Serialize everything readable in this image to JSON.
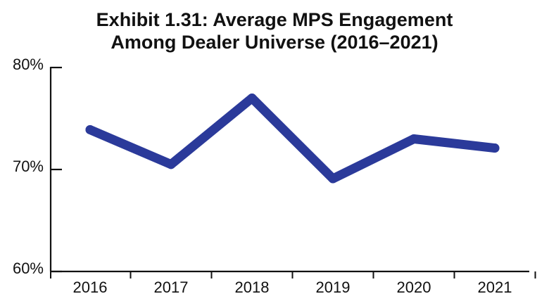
{
  "chart_data": {
    "type": "line",
    "title_lines": [
      "Exhibit 1.31: Average MPS Engagement",
      "Among Dealer Universe (2016–2021)"
    ],
    "categories": [
      "2016",
      "2017",
      "2018",
      "2019",
      "2020",
      "2021"
    ],
    "series": [
      {
        "values": [
          73.9,
          70.5,
          77.0,
          69.1,
          73.0,
          72.1
        ]
      }
    ],
    "y_ticks": [
      {
        "value": 80,
        "label": "80%"
      },
      {
        "value": 70,
        "label": "70%"
      },
      {
        "value": 60,
        "label": "60%"
      }
    ],
    "ylim": [
      60,
      80
    ],
    "xlabel": "",
    "ylabel": "",
    "grid": false,
    "legend": "none",
    "line_color": "#2b3a9a",
    "axis_color": "#111111"
  }
}
